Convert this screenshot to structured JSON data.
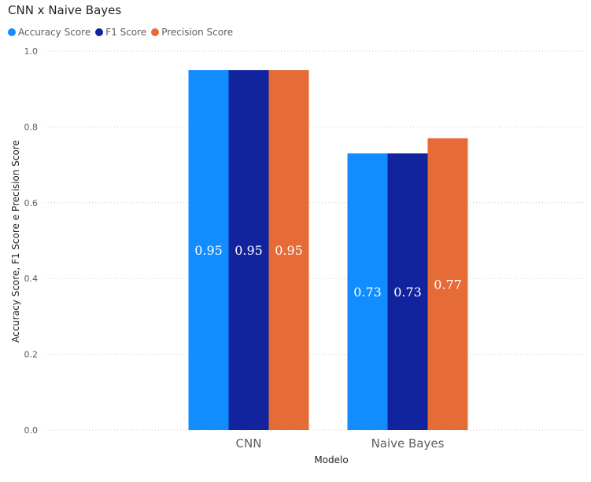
{
  "chart_data": {
    "type": "bar",
    "title": "CNN x Naive Bayes",
    "xlabel": "Modelo",
    "ylabel": "Accuracy Score, F1 Score e Precision Score",
    "categories": [
      "CNN",
      "Naive Bayes"
    ],
    "series": [
      {
        "name": "Accuracy Score",
        "color": "#118DFF",
        "values": [
          0.95,
          0.73
        ]
      },
      {
        "name": "F1 Score",
        "color": "#12239E",
        "values": [
          0.95,
          0.73
        ]
      },
      {
        "name": "Precision Score",
        "color": "#E66C37",
        "values": [
          0.95,
          0.77
        ]
      }
    ],
    "data_labels": [
      [
        "0.95",
        "0.73"
      ],
      [
        "0.95",
        "0.73"
      ],
      [
        "0.95",
        "0.77"
      ]
    ],
    "ylim": [
      0,
      1
    ],
    "yticks": [
      "0.0",
      "0.2",
      "0.4",
      "0.6",
      "0.8",
      "1.0"
    ],
    "grid": true,
    "legend_position": "top-left"
  }
}
